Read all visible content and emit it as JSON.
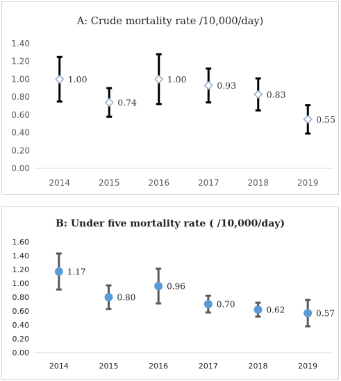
{
  "chart_data": [
    {
      "type": "scatter",
      "title": "A: Crude mortality rate /10,000/day)",
      "xlabel": "",
      "ylabel": "",
      "categories": [
        "2014",
        "2015",
        "2016",
        "2017",
        "2018",
        "2019"
      ],
      "values": [
        1.0,
        0.74,
        1.0,
        0.93,
        0.83,
        0.55
      ],
      "error_low": [
        0.75,
        0.58,
        0.72,
        0.74,
        0.65,
        0.39
      ],
      "error_high": [
        1.25,
        0.9,
        1.28,
        1.12,
        1.01,
        0.71
      ],
      "data_labels": [
        "1.00",
        "0.74",
        "1.00",
        "0.93",
        "0.83",
        "0.55"
      ],
      "ylim": [
        0,
        1.4
      ],
      "yticks": [
        "0.00",
        "0.20",
        "0.40",
        "0.60",
        "0.80",
        "1.00",
        "1.20",
        "1.40"
      ],
      "grid": false,
      "marker": "open-diamond",
      "colors": {
        "marker_fill": "#ffffff",
        "marker_stroke": "#8fa9c9",
        "error_bar": "#000000"
      }
    },
    {
      "type": "scatter",
      "title": "B: Under five mortality rate ( /10,000/day)",
      "xlabel": "",
      "ylabel": "",
      "categories": [
        "2014",
        "2015",
        "2016",
        "2017",
        "2018",
        "2019"
      ],
      "values": [
        1.17,
        0.8,
        0.96,
        0.7,
        0.62,
        0.57
      ],
      "error_low": [
        0.91,
        0.63,
        0.71,
        0.58,
        0.52,
        0.38
      ],
      "error_high": [
        1.43,
        0.97,
        1.21,
        0.82,
        0.72,
        0.76
      ],
      "data_labels": [
        "1.17",
        "0.80",
        "0.96",
        "0.70",
        "0.62",
        "0.57"
      ],
      "ylim": [
        0,
        1.6
      ],
      "yticks": [
        "0.00",
        "0.20",
        "0.40",
        "0.60",
        "0.80",
        "1.00",
        "1.20",
        "1.40",
        "1.60"
      ],
      "grid": false,
      "marker": "filled-circle",
      "colors": {
        "marker_fill": "#5b9bd5",
        "error_bar": "#595959",
        "x_axis": "#d9d9d9"
      }
    }
  ]
}
